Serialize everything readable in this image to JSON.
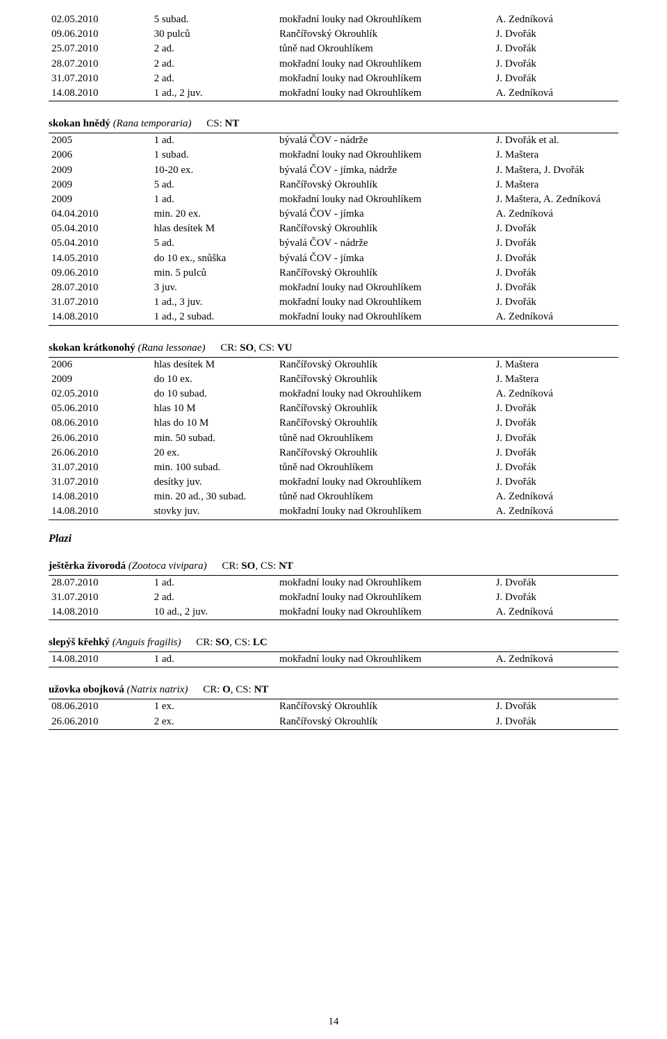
{
  "page_number": "14",
  "topTable": [
    {
      "d": "02.05.2010",
      "c": "5 subad.",
      "l": "mokřadní louky nad Okrouhlíkem",
      "o": "A. Zedníková"
    },
    {
      "d": "09.06.2010",
      "c": "30 pulců",
      "l": "Rančířovský Okrouhlík",
      "o": "J. Dvořák"
    },
    {
      "d": "25.07.2010",
      "c": "2 ad.",
      "l": "tůně nad Okrouhlíkem",
      "o": "J. Dvořák"
    },
    {
      "d": "28.07.2010",
      "c": "2 ad.",
      "l": "mokřadní louky nad Okrouhlíkem",
      "o": "J. Dvořák"
    },
    {
      "d": "31.07.2010",
      "c": "2 ad.",
      "l": "mokřadní louky nad Okrouhlíkem",
      "o": "J. Dvořák"
    },
    {
      "d": "14.08.2010",
      "c": "1 ad., 2 juv.",
      "l": "mokřadní louky nad Okrouhlíkem",
      "o": "A. Zedníková"
    }
  ],
  "species": [
    {
      "name": "skokan hnědý",
      "latin": "(Rana temporaria)",
      "codes_prefix": "CS: ",
      "codes_bold": "NT",
      "rows": [
        {
          "d": "2005",
          "c": "1 ad.",
          "l": "bývalá ČOV - nádrže",
          "o": "J. Dvořák et al."
        },
        {
          "d": "2006",
          "c": "1 subad.",
          "l": "mokřadní louky nad Okrouhlíkem",
          "o": "J. Maštera"
        },
        {
          "d": "2009",
          "c": "10-20 ex.",
          "l": "bývalá ČOV - jímka, nádrže",
          "o": "J. Maštera, J. Dvořák"
        },
        {
          "d": "2009",
          "c": "5 ad.",
          "l": "Rančířovský Okrouhlík",
          "o": "J. Maštera"
        },
        {
          "d": "2009",
          "c": "1 ad.",
          "l": "mokřadní louky nad Okrouhlíkem",
          "o": "J. Maštera, A. Zedníková"
        },
        {
          "d": "04.04.2010",
          "c": "min. 20 ex.",
          "l": "bývalá ČOV - jímka",
          "o": "A. Zedníková"
        },
        {
          "d": "05.04.2010",
          "c": "hlas desítek M",
          "l": "Rančířovský Okrouhlík",
          "o": "J. Dvořák"
        },
        {
          "d": "05.04.2010",
          "c": "5 ad.",
          "l": "bývalá ČOV - nádrže",
          "o": "J. Dvořák"
        },
        {
          "d": "14.05.2010",
          "c": "do 10 ex., snůška",
          "l": "bývalá ČOV - jímka",
          "o": "J. Dvořák"
        },
        {
          "d": "09.06.2010",
          "c": "min. 5 pulců",
          "l": "Rančířovský Okrouhlík",
          "o": "J. Dvořák"
        },
        {
          "d": "28.07.2010",
          "c": "3 juv.",
          "l": "mokřadní louky nad Okrouhlíkem",
          "o": "J. Dvořák"
        },
        {
          "d": "31.07.2010",
          "c": "1 ad., 3 juv.",
          "l": "mokřadní louky nad Okrouhlíkem",
          "o": "J. Dvořák"
        },
        {
          "d": "14.08.2010",
          "c": "1 ad., 2 subad.",
          "l": "mokřadní louky nad Okrouhlíkem",
          "o": "A. Zedníková"
        }
      ]
    },
    {
      "name": "skokan krátkonohý",
      "latin": "(Rana lessonae)",
      "codes_prefix": "CR: ",
      "codes_bold": "SO",
      "codes_mid": ", CS: ",
      "codes_bold2": "VU",
      "rows": [
        {
          "d": "2006",
          "c": "hlas desítek M",
          "l": "Rančířovský Okrouhlík",
          "o": "J. Maštera"
        },
        {
          "d": "2009",
          "c": "do 10 ex.",
          "l": "Rančířovský Okrouhlík",
          "o": "J. Maštera"
        },
        {
          "d": "02.05.2010",
          "c": "do 10 subad.",
          "l": "mokřadní louky nad Okrouhlíkem",
          "o": "A. Zedníková"
        },
        {
          "d": "05.06.2010",
          "c": "hlas 10 M",
          "l": "Rančířovský Okrouhlík",
          "o": "J. Dvořák"
        },
        {
          "d": "08.06.2010",
          "c": "hlas do 10 M",
          "l": "Rančířovský Okrouhlík",
          "o": "J. Dvořák"
        },
        {
          "d": "26.06.2010",
          "c": "min. 50 subad.",
          "l": "tůně nad Okrouhlíkem",
          "o": "J. Dvořák"
        },
        {
          "d": "26.06.2010",
          "c": "20 ex.",
          "l": "Rančířovský Okrouhlík",
          "o": "J. Dvořák"
        },
        {
          "d": "31.07.2010",
          "c": "min. 100 subad.",
          "l": "tůně nad Okrouhlíkem",
          "o": "J. Dvořák"
        },
        {
          "d": "31.07.2010",
          "c": "desítky juv.",
          "l": "mokřadní louky nad Okrouhlíkem",
          "o": "J. Dvořák"
        },
        {
          "d": "14.08.2010",
          "c": "min. 20 ad., 30 subad.",
          "l": "tůně nad Okrouhlíkem",
          "o": "A. Zedníková"
        },
        {
          "d": "14.08.2010",
          "c": "stovky juv.",
          "l": "mokřadní louky nad Okrouhlíkem",
          "o": "A. Zedníková"
        }
      ]
    }
  ],
  "section_plazi": "Plazi",
  "species_plazi": [
    {
      "name": "ještěrka živorodá",
      "latin": "(Zootoca vivipara)",
      "codes_prefix": "CR: ",
      "codes_bold": "SO",
      "codes_mid": ", CS: ",
      "codes_bold2": "NT",
      "rows": [
        {
          "d": "28.07.2010",
          "c": "1 ad.",
          "l": "mokřadní louky nad Okrouhlíkem",
          "o": "J. Dvořák"
        },
        {
          "d": "31.07.2010",
          "c": "2 ad.",
          "l": "mokřadní louky nad Okrouhlíkem",
          "o": "J. Dvořák"
        },
        {
          "d": "14.08.2010",
          "c": "10 ad., 2 juv.",
          "l": "mokřadní louky nad Okrouhlíkem",
          "o": "A. Zedníková"
        }
      ]
    },
    {
      "name": "slepýš křehký",
      "latin": "(Anguis fragilis)",
      "codes_prefix": "CR: ",
      "codes_bold": "SO",
      "codes_mid": ", CS: ",
      "codes_bold2": "LC",
      "rows": [
        {
          "d": "14.08.2010",
          "c": "1 ad.",
          "l": "mokřadní louky nad Okrouhlíkem",
          "o": "A. Zedníková"
        }
      ]
    },
    {
      "name": "užovka obojková",
      "latin": "(Natrix natrix)",
      "codes_prefix": "CR: ",
      "codes_bold": "O",
      "codes_mid": ", CS: ",
      "codes_bold2": "NT",
      "rows": [
        {
          "d": "08.06.2010",
          "c": "1 ex.",
          "l": "Rančířovský Okrouhlík",
          "o": "J. Dvořák"
        },
        {
          "d": "26.06.2010",
          "c": "2 ex.",
          "l": "Rančířovský Okrouhlík",
          "o": "J. Dvořák"
        }
      ]
    }
  ]
}
